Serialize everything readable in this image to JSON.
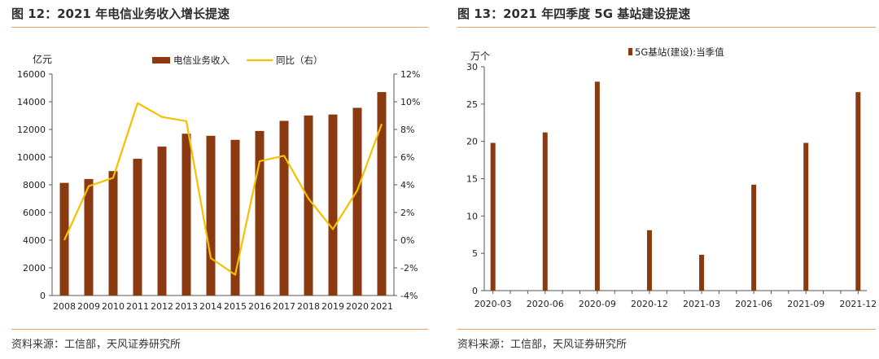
{
  "left_panel": {
    "title": "图 12：2021 年电信业务收入增长提速",
    "source": "资料来源：工信部，天风证券研究所"
  },
  "right_panel": {
    "title": "图 13：2021 年四季度 5G 基站建设提速",
    "source": "资料来源：工信部，天风证券研究所"
  },
  "colors": {
    "bar": "#8b3a0f",
    "line": "#f5c000",
    "rule": "#e8a35a"
  },
  "chart_data": [
    {
      "type": "bar",
      "ylabel": "亿元",
      "y2label": "",
      "categories": [
        "2008",
        "2009",
        "2010",
        "2011",
        "2012",
        "2013",
        "2014",
        "2015",
        "2016",
        "2017",
        "2018",
        "2019",
        "2020",
        "2021"
      ],
      "series": [
        {
          "name": "电信业务收入",
          "type": "bar",
          "axis": "left",
          "values": [
            8140,
            8420,
            8990,
            9880,
            10760,
            11690,
            11540,
            11250,
            11890,
            12620,
            13010,
            13080,
            13560,
            14700
          ]
        },
        {
          "name": "同比（右）",
          "type": "line",
          "axis": "right",
          "values": [
            0.0,
            3.9,
            4.5,
            9.9,
            8.9,
            8.6,
            -1.3,
            -2.5,
            5.7,
            6.1,
            3.0,
            0.8,
            3.6,
            8.4
          ]
        }
      ],
      "ylim": [
        0,
        16000
      ],
      "yticks": [
        "0",
        "2000",
        "4000",
        "6000",
        "8000",
        "10000",
        "12000",
        "14000",
        "16000"
      ],
      "y2lim": [
        -4,
        12
      ],
      "y2ticks": [
        "-4%",
        "-2%",
        "0%",
        "2%",
        "4%",
        "6%",
        "8%",
        "10%",
        "12%"
      ],
      "legend": "top",
      "grid": false
    },
    {
      "type": "bar",
      "ylabel": "万个",
      "categories": [
        "2020-03",
        "2020-04",
        "2020-05",
        "2020-06",
        "2020-07",
        "2020-08",
        "2020-09",
        "2020-10",
        "2020-11",
        "2020-12",
        "2021-01",
        "2021-02",
        "2021-03",
        "2021-04",
        "2021-05",
        "2021-06",
        "2021-07",
        "2021-08",
        "2021-09",
        "2021-10",
        "2021-11",
        "2021-12"
      ],
      "xticks": [
        "2020-03",
        "2020-06",
        "2020-09",
        "2020-12",
        "2021-03",
        "2021-06",
        "2021-09",
        "2021-12"
      ],
      "series": [
        {
          "name": "5G基站(建设):当季值",
          "values": [
            19.8,
            null,
            null,
            21.2,
            null,
            null,
            28.0,
            null,
            null,
            8.1,
            null,
            null,
            4.8,
            null,
            null,
            14.2,
            null,
            null,
            19.8,
            null,
            null,
            26.6
          ]
        }
      ],
      "ylim": [
        0,
        30
      ],
      "yticks": [
        "0",
        "5",
        "10",
        "15",
        "20",
        "25",
        "30"
      ],
      "legend": "top",
      "grid": false
    }
  ]
}
